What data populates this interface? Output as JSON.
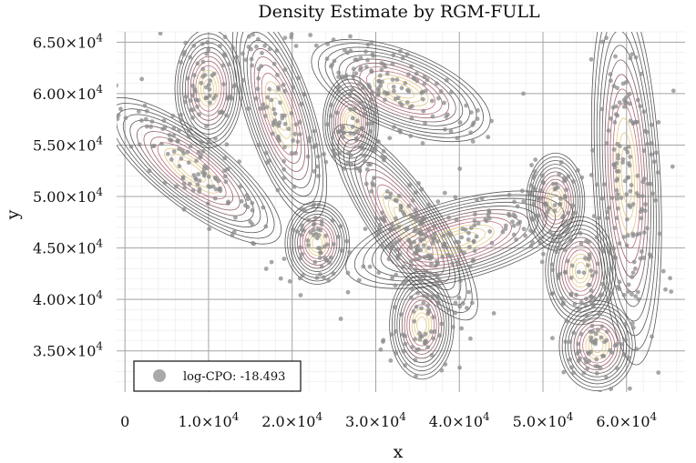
{
  "chart_data": {
    "type": "scatter",
    "title": "Density Estimate by RGM-FULL",
    "xlabel": "x",
    "ylabel": "y",
    "xlim": [
      -1000,
      67000
    ],
    "ylim": [
      31000,
      66000
    ],
    "x_ticks": [
      0,
      10000,
      20000,
      30000,
      40000,
      50000,
      60000
    ],
    "x_tick_labels": [
      {
        "base": "0",
        "exp": ""
      },
      {
        "base": "1.0×10",
        "exp": "4"
      },
      {
        "base": "2.0×10",
        "exp": "4"
      },
      {
        "base": "3.0×10",
        "exp": "4"
      },
      {
        "base": "4.0×10",
        "exp": "4"
      },
      {
        "base": "5.0×10",
        "exp": "4"
      },
      {
        "base": "6.0×10",
        "exp": "4"
      }
    ],
    "y_ticks": [
      35000,
      40000,
      45000,
      50000,
      55000,
      60000,
      65000
    ],
    "y_tick_labels": [
      {
        "base": "3.50×10",
        "exp": "4"
      },
      {
        "base": "4.00×10",
        "exp": "4"
      },
      {
        "base": "4.50×10",
        "exp": "4"
      },
      {
        "base": "5.00×10",
        "exp": "4"
      },
      {
        "base": "5.50×10",
        "exp": "4"
      },
      {
        "base": "6.00×10",
        "exp": "4"
      },
      {
        "base": "6.50×10",
        "exp": "4"
      }
    ],
    "grid": true,
    "legend": {
      "label": "log-CPO: -18.493",
      "position": "bottom-left"
    },
    "colors": {
      "points": "#8a8a8a",
      "contour": "#3d3d3d",
      "density_high": "#e0c070",
      "density_mid": "#c0607a"
    },
    "clusters": [
      {
        "cx": 8000,
        "cy": 52500,
        "sx": 7500,
        "sy": 2000,
        "angle": -38,
        "n": 120
      },
      {
        "cx": 10000,
        "cy": 60500,
        "sx": 2300,
        "sy": 3300,
        "angle": 0,
        "n": 70
      },
      {
        "cx": 18500,
        "cy": 58000,
        "sx": 2300,
        "sy": 6200,
        "angle": 18,
        "n": 110
      },
      {
        "cx": 27000,
        "cy": 57200,
        "sx": 1900,
        "sy": 2600,
        "angle": 0,
        "n": 55
      },
      {
        "cx": 33000,
        "cy": 60300,
        "sx": 6500,
        "sy": 2200,
        "angle": -22,
        "n": 120
      },
      {
        "cx": 23000,
        "cy": 45500,
        "sx": 2200,
        "sy": 2300,
        "angle": 0,
        "n": 55
      },
      {
        "cx": 33500,
        "cy": 47500,
        "sx": 2300,
        "sy": 6500,
        "angle": 35,
        "n": 130
      },
      {
        "cx": 40000,
        "cy": 45800,
        "sx": 8000,
        "sy": 2200,
        "angle": 15,
        "n": 130
      },
      {
        "cx": 35500,
        "cy": 37500,
        "sx": 2200,
        "sy": 3000,
        "angle": 0,
        "n": 60
      },
      {
        "cx": 51500,
        "cy": 49500,
        "sx": 2000,
        "sy": 2700,
        "angle": 0,
        "n": 55
      },
      {
        "cx": 54500,
        "cy": 42800,
        "sx": 2400,
        "sy": 3000,
        "angle": 0,
        "n": 60
      },
      {
        "cx": 56500,
        "cy": 35500,
        "sx": 2600,
        "sy": 2500,
        "angle": 0,
        "n": 60
      },
      {
        "cx": 60000,
        "cy": 52000,
        "sx": 2300,
        "sy": 10500,
        "angle": 3,
        "n": 170
      }
    ]
  }
}
